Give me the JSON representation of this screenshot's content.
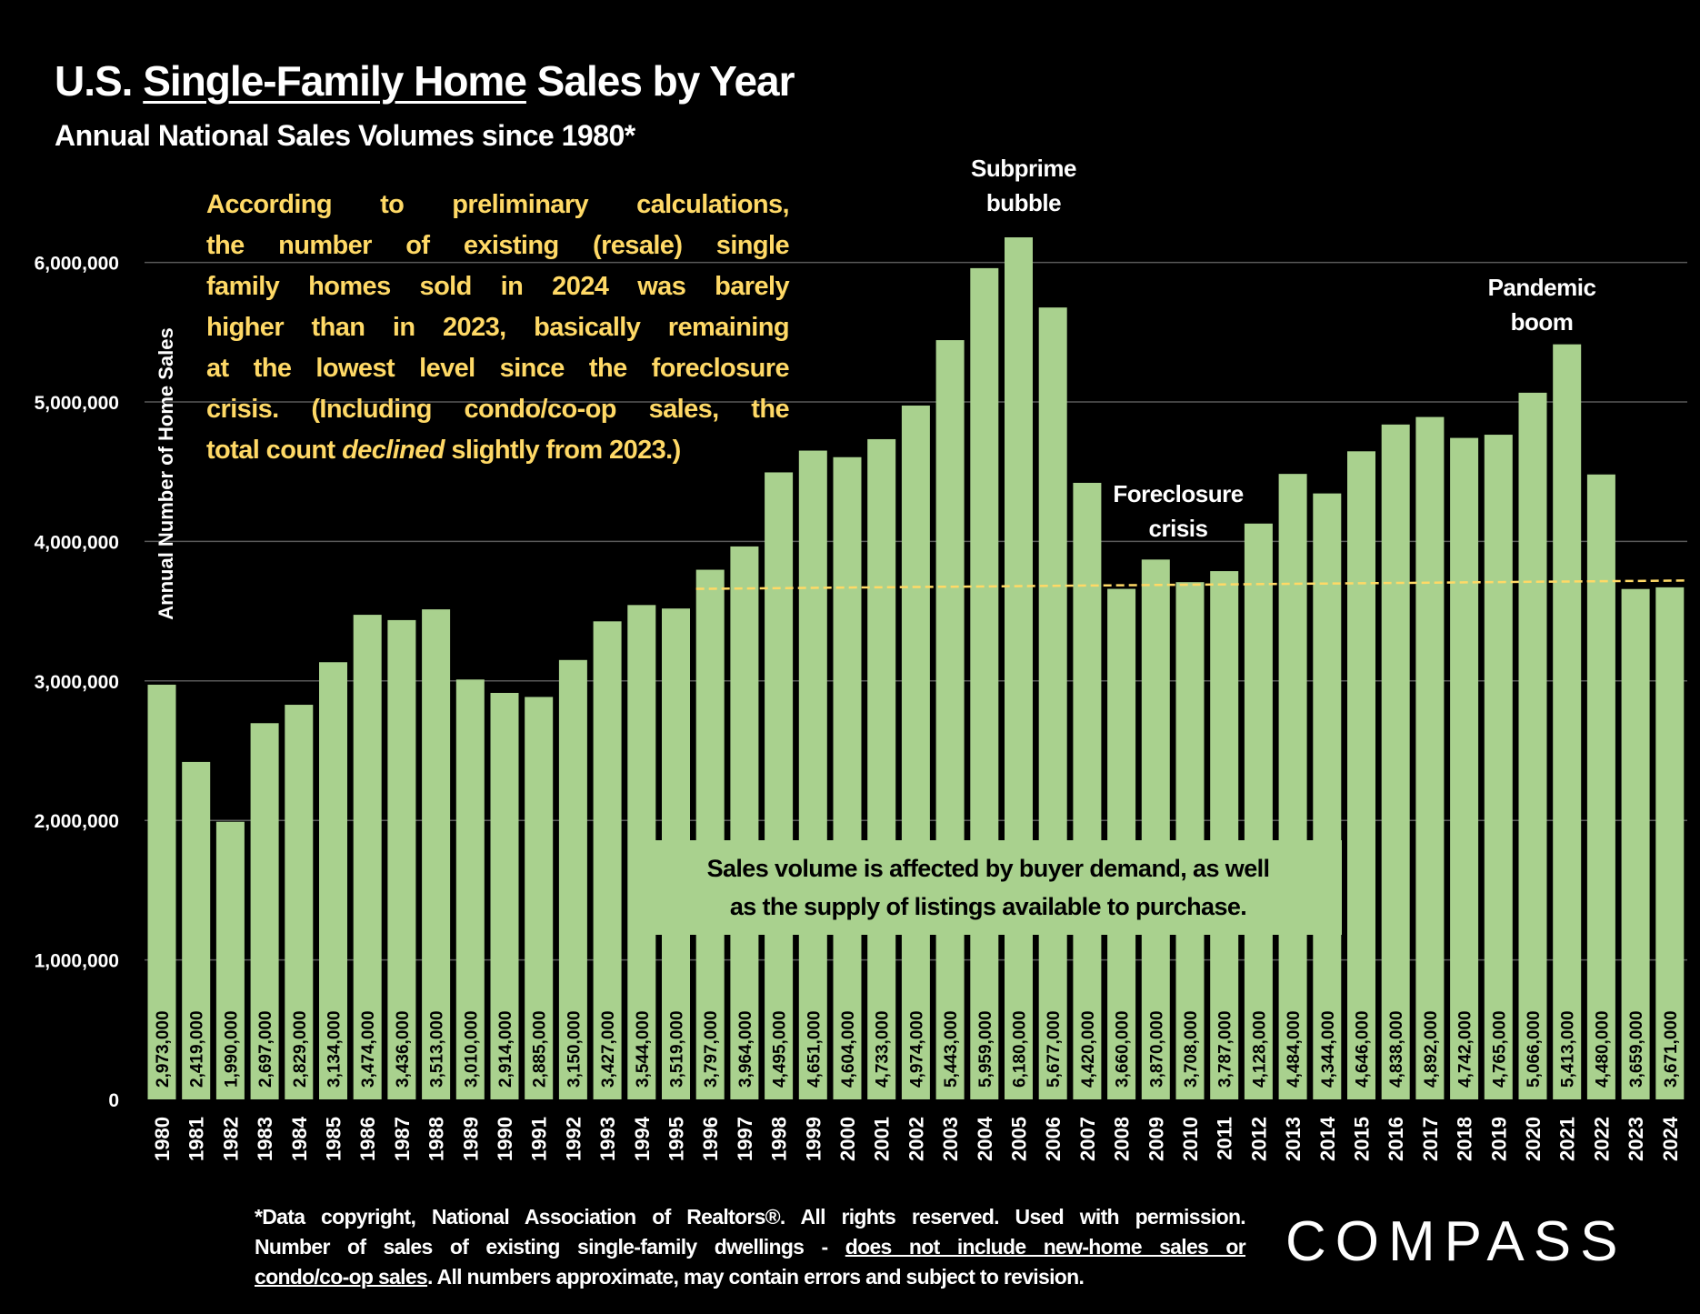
{
  "header": {
    "title_pre": "U.S. ",
    "title_underlined": "Single-Family Home",
    "title_post": " Sales by Year",
    "subtitle": "Annual National Sales Volumes since 1980*"
  },
  "commentary": {
    "lines": [
      "According to preliminary calculations,",
      "the number of existing (resale) single",
      "family homes sold in 2024 was barely",
      "higher than in 2023, basically remaining",
      "at the lowest level since the foreclosure",
      "crisis. (Including condo/co-op sales, the"
    ],
    "last_line_pre": "total count ",
    "last_line_italic": "declined",
    "last_line_post": " slightly from 2023.)",
    "color": "#ffd966"
  },
  "callout_box": {
    "line1": "Sales volume is affected by buyer demand, as well",
    "line2": "as the supply of listings available to purchase."
  },
  "footnote": {
    "line1": "*Data copyright, National Association of Realtors®. All rights reserved. Used with permission.",
    "line2_pre": "Number of sales of existing single-family dwellings - ",
    "line2_underlined": "does not include new-home sales or",
    "line3_underlined": "condo/co-op sales",
    "line3_post": ". All numbers approximate, may contain errors and subject to revision."
  },
  "logo": {
    "text": "COMPASS"
  },
  "chart_data": {
    "type": "bar",
    "title": "U.S. Single-Family Home Sales by Year",
    "subtitle": "Annual National Sales Volumes since 1980*",
    "xlabel": "",
    "ylabel": "Annual Number of Home Sales",
    "ylim": [
      0,
      6000000
    ],
    "yticks": [
      "0",
      "1,000,000",
      "2,000,000",
      "3,000,000",
      "4,000,000",
      "5,000,000",
      "6,000,000"
    ],
    "grid": true,
    "bar_color": "#a9d18e",
    "categories": [
      "1980",
      "1981",
      "1982",
      "1983",
      "1984",
      "1985",
      "1986",
      "1987",
      "1988",
      "1989",
      "1990",
      "1991",
      "1992",
      "1993",
      "1994",
      "1995",
      "1996",
      "1997",
      "1998",
      "1999",
      "2000",
      "2001",
      "2002",
      "2003",
      "2004",
      "2005",
      "2006",
      "2007",
      "2008",
      "2009",
      "2010",
      "2011",
      "2012",
      "2013",
      "2014",
      "2015",
      "2016",
      "2017",
      "2018",
      "2019",
      "2020",
      "2021",
      "2022",
      "2023",
      "2024"
    ],
    "values": [
      2973000,
      2419000,
      1990000,
      2697000,
      2829000,
      3134000,
      3474000,
      3436000,
      3513000,
      3010000,
      2914000,
      2885000,
      3150000,
      3427000,
      3544000,
      3519000,
      3797000,
      3964000,
      4495000,
      4651000,
      4604000,
      4733000,
      4974000,
      5443000,
      5959000,
      6180000,
      5677000,
      4420000,
      3660000,
      3870000,
      3708000,
      3787000,
      4128000,
      4484000,
      4344000,
      4646000,
      4838000,
      4892000,
      4742000,
      4765000,
      5066000,
      5413000,
      4480000,
      3659000,
      3671000
    ],
    "data_labels": [
      "2,973,000",
      "2,419,000",
      "1,990,000",
      "2,697,000",
      "2,829,000",
      "3,134,000",
      "3,474,000",
      "3,436,000",
      "3,513,000",
      "3,010,000",
      "2,914,000",
      "2,885,000",
      "3,150,000",
      "3,427,000",
      "3,544,000",
      "3,519,000",
      "3,797,000",
      "3,964,000",
      "4,495,000",
      "4,651,000",
      "4,604,000",
      "4,733,000",
      "4,974,000",
      "5,443,000",
      "5,959,000",
      "6,180,000",
      "5,677,000",
      "4,420,000",
      "3,660,000",
      "3,870,000",
      "3,708,000",
      "3,787,000",
      "4,128,000",
      "4,484,000",
      "4,344,000",
      "4,646,000",
      "4,838,000",
      "4,892,000",
      "4,742,000",
      "4,765,000",
      "5,066,000",
      "5,413,000",
      "4,480,000",
      "3,659,000",
      "3,671,000"
    ],
    "reference_line": {
      "style": "dashed",
      "color": "#ffd966",
      "from": {
        "x": "1996",
        "y": 3660000
      },
      "to": {
        "x": "2024",
        "y": 3720000
      }
    },
    "annotations": [
      {
        "line1": "Subprime",
        "line2": "bubble",
        "x": "2005"
      },
      {
        "line1": "Foreclosure",
        "line2": "crisis",
        "x": "2010"
      },
      {
        "line1": "Pandemic",
        "line2": "boom",
        "x": "2021"
      }
    ]
  }
}
